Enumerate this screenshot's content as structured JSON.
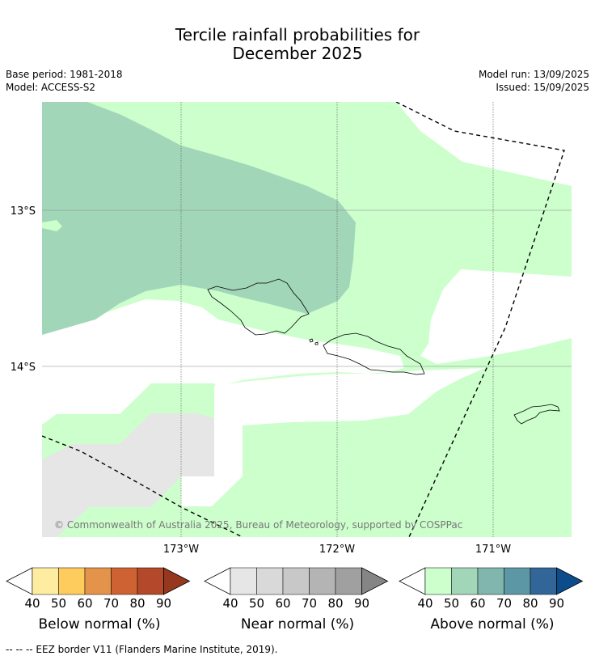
{
  "title_line1": "Tercile rainfall probabilities for",
  "title_line2": "December 2025",
  "base_period": "Base period: 1981-2018",
  "model": "Model: ACCESS-S2",
  "model_run": "Model run: 13/09/2025",
  "issued": "Issued: 15/09/2025",
  "lat_labels": [
    "13°S",
    "14°S"
  ],
  "lon_labels": [
    "173°W",
    "172°W",
    "171°W"
  ],
  "copyright": "© Commonwealth of Australia 2025, Bureau of Meteorology, supported by COSPPac",
  "colorbars": [
    {
      "title": "Below normal (%)",
      "ticks": [
        "40",
        "50",
        "60",
        "70",
        "80",
        "90"
      ],
      "colors": [
        "#ffffff",
        "#feeda0",
        "#fecc5c",
        "#e3944a",
        "#cf6232",
        "#b3492a",
        "#96371f"
      ]
    },
    {
      "title": "Near normal (%)",
      "ticks": [
        "40",
        "50",
        "60",
        "70",
        "80",
        "90"
      ],
      "colors": [
        "#ffffff",
        "#e6e6e6",
        "#d9d9d9",
        "#c8c8c8",
        "#b4b4b4",
        "#a0a0a0",
        "#858585"
      ]
    },
    {
      "title": "Above normal (%)",
      "ticks": [
        "40",
        "50",
        "60",
        "70",
        "80",
        "90"
      ],
      "colors": [
        "#ffffff",
        "#ccffcc",
        "#a2d6b8",
        "#80b6ad",
        "#5c97a5",
        "#326699",
        "#0c4c8a"
      ]
    }
  ],
  "footnote": "--  --  -- EEZ border V11 (Flanders Marine Institute, 2019)."
}
